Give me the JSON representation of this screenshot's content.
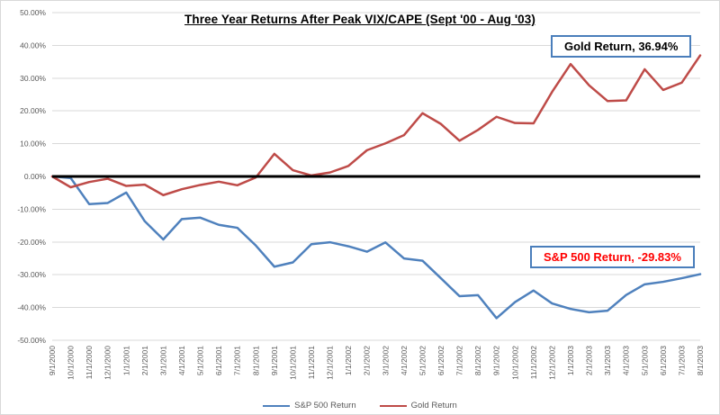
{
  "chart_data": {
    "type": "line",
    "title": "Three Year Returns After Peak VIX/CAPE (Sept '00 - Aug '03)",
    "xlabel": "",
    "ylabel": "",
    "ylim": [
      -50,
      50
    ],
    "ytick_step": 10,
    "grid": true,
    "legend_position": "bottom",
    "zero_line": true,
    "ytick_labels": [
      "50.00%",
      "40.00%",
      "30.00%",
      "20.00%",
      "10.00%",
      "0.00%",
      "-10.00%",
      "-20.00%",
      "-30.00%",
      "-40.00%",
      "-50.00%"
    ],
    "x": [
      "9/1/2000",
      "10/1/2000",
      "11/1/2000",
      "12/1/2000",
      "1/1/2001",
      "2/1/2001",
      "3/1/2001",
      "4/1/2001",
      "5/1/2001",
      "6/1/2001",
      "7/1/2001",
      "8/1/2001",
      "9/1/2001",
      "10/1/2001",
      "11/1/2001",
      "12/1/2001",
      "1/1/2002",
      "2/1/2002",
      "3/1/2002",
      "4/1/2002",
      "5/1/2002",
      "6/1/2002",
      "7/1/2002",
      "8/1/2002",
      "9/1/2002",
      "10/1/2002",
      "11/1/2002",
      "12/1/2002",
      "1/1/2003",
      "2/1/2003",
      "3/1/2003",
      "4/1/2003",
      "5/1/2003",
      "6/1/2003",
      "7/1/2003",
      "8/1/2003"
    ],
    "series": [
      {
        "name": "S&P 500 Return",
        "color": "#4f81bd",
        "values": [
          0.0,
          -0.49,
          -8.46,
          -8.09,
          -4.91,
          -13.68,
          -19.23,
          -13.02,
          -12.58,
          -14.77,
          -15.68,
          -21.09,
          -27.54,
          -26.23,
          -20.68,
          -20.08,
          -21.32,
          -22.96,
          -20.13,
          -25.03,
          -25.71,
          -31.1,
          -36.54,
          -36.23,
          -43.25,
          -38.34,
          -34.82,
          -38.75,
          -40.43,
          -41.44,
          -40.96,
          -36.17,
          -32.92,
          -32.16,
          -31.06,
          -29.83
        ]
      },
      {
        "name": "Gold Return",
        "color": "#be4b48",
        "values": [
          0.0,
          -3.3,
          -1.7,
          -0.7,
          -2.9,
          -2.5,
          -5.7,
          -3.9,
          -2.6,
          -1.6,
          -2.7,
          -0.3,
          6.9,
          1.9,
          0.3,
          1.2,
          3.2,
          8.0,
          10.1,
          12.6,
          19.3,
          16.0,
          10.9,
          14.2,
          18.2,
          16.3,
          16.2,
          25.8,
          34.3,
          27.8,
          23.0,
          23.2,
          32.7,
          26.4,
          28.6,
          36.94
        ]
      }
    ]
  },
  "annotations": {
    "gold": {
      "label": "Gold Return, 36.94%",
      "text_color": "#000000",
      "border_color": "#4a7ebb"
    },
    "sp500": {
      "label": "S&P 500 Return, -29.83%",
      "text_color": "#ff0000",
      "border_color": "#4a7ebb"
    }
  },
  "style": {
    "gridline_color": "#d9d9d9",
    "zero_line_color": "#000000",
    "tick_label_color": "#595959"
  }
}
